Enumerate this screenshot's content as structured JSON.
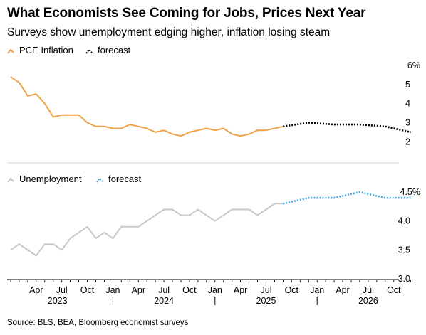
{
  "header": {
    "title": "What Economists See Coming for Jobs, Prices Next Year",
    "subtitle": "Surveys show unemployment edging higher, inflation losing steam"
  },
  "footer": {
    "source": "Source: BLS, BEA, Bloomberg economist surveys"
  },
  "colors": {
    "pce": "#f0a24a",
    "pce_forecast": "#000000",
    "unemployment": "#c8c8c8",
    "unemployment_forecast": "#4aa8e0",
    "axis": "#000000",
    "grid": "#d6d6d6"
  },
  "x_axis": {
    "month_ticks": [
      {
        "label": "Apr",
        "date": "2023-04"
      },
      {
        "label": "Jul",
        "date": "2023-07"
      },
      {
        "label": "Oct",
        "date": "2023-10"
      },
      {
        "label": "Jan",
        "date": "2024-01"
      },
      {
        "label": "Apr",
        "date": "2024-04"
      },
      {
        "label": "Jul",
        "date": "2024-07"
      },
      {
        "label": "Oct",
        "date": "2024-10"
      },
      {
        "label": "Jan",
        "date": "2025-01"
      },
      {
        "label": "Apr",
        "date": "2025-04"
      },
      {
        "label": "Jul",
        "date": "2025-07"
      },
      {
        "label": "Oct",
        "date": "2025-10"
      },
      {
        "label": "Jan",
        "date": "2026-01"
      },
      {
        "label": "Apr",
        "date": "2026-04"
      },
      {
        "label": "Jul",
        "date": "2026-07"
      },
      {
        "label": "Oct",
        "date": "2026-10"
      }
    ],
    "year_labels": [
      "2023",
      "2024",
      "2025",
      "2026"
    ]
  },
  "chart_data": [
    {
      "type": "line",
      "legend": [
        {
          "label": "PCE Inflation",
          "color": "#f0a24a"
        },
        {
          "label": "forecast",
          "color": "#000000"
        }
      ],
      "legend_position": "top-left",
      "yaxis_side": "right",
      "ylim": [
        1.6,
        6.0
      ],
      "yticks": [
        {
          "value": 2,
          "label": "2"
        },
        {
          "value": 3,
          "label": "3"
        },
        {
          "value": 4,
          "label": "4"
        },
        {
          "value": 5,
          "label": "5"
        },
        {
          "value": 6,
          "label": "6%"
        }
      ],
      "grid": false,
      "series": [
        {
          "name": "PCE Inflation",
          "style": "solid",
          "color": "#f0a24a",
          "x": [
            "2023-01",
            "2023-02",
            "2023-03",
            "2023-04",
            "2023-05",
            "2023-06",
            "2023-07",
            "2023-08",
            "2023-09",
            "2023-10",
            "2023-11",
            "2023-12",
            "2024-01",
            "2024-02",
            "2024-03",
            "2024-04",
            "2024-05",
            "2024-06",
            "2024-07",
            "2024-08",
            "2024-09",
            "2024-10",
            "2024-11",
            "2024-12",
            "2025-01",
            "2025-02",
            "2025-03",
            "2025-04",
            "2025-05",
            "2025-06",
            "2025-07",
            "2025-08",
            "2025-09"
          ],
          "y": [
            5.4,
            5.1,
            4.4,
            4.5,
            4.0,
            3.3,
            3.4,
            3.4,
            3.4,
            3.0,
            2.8,
            2.8,
            2.7,
            2.7,
            2.9,
            2.8,
            2.7,
            2.5,
            2.6,
            2.4,
            2.3,
            2.5,
            2.6,
            2.7,
            2.6,
            2.7,
            2.4,
            2.3,
            2.4,
            2.6,
            2.6,
            2.7,
            2.8
          ]
        },
        {
          "name": "forecast",
          "style": "dotted",
          "color": "#000000",
          "x": [
            "2025-09",
            "2025-12",
            "2026-03",
            "2026-06",
            "2026-09",
            "2026-12"
          ],
          "y": [
            2.8,
            3.0,
            2.9,
            2.9,
            2.8,
            2.5
          ]
        }
      ]
    },
    {
      "type": "line",
      "legend": [
        {
          "label": "Unemployment",
          "color": "#c8c8c8"
        },
        {
          "label": "forecast",
          "color": "#4aa8e0"
        }
      ],
      "legend_position": "top-left",
      "yaxis_side": "right",
      "ylim": [
        3.0,
        4.55
      ],
      "yticks": [
        {
          "value": 3.0,
          "label": "3.0"
        },
        {
          "value": 3.5,
          "label": "3.5"
        },
        {
          "value": 4.0,
          "label": "4.0"
        },
        {
          "value": 4.5,
          "label": "4.5%"
        }
      ],
      "grid": false,
      "series": [
        {
          "name": "Unemployment",
          "style": "solid",
          "color": "#c8c8c8",
          "x": [
            "2023-01",
            "2023-02",
            "2023-03",
            "2023-04",
            "2023-05",
            "2023-06",
            "2023-07",
            "2023-08",
            "2023-09",
            "2023-10",
            "2023-11",
            "2023-12",
            "2024-01",
            "2024-02",
            "2024-03",
            "2024-04",
            "2024-05",
            "2024-06",
            "2024-07",
            "2024-08",
            "2024-09",
            "2024-10",
            "2024-11",
            "2024-12",
            "2025-01",
            "2025-02",
            "2025-03",
            "2025-04",
            "2025-05",
            "2025-06",
            "2025-07",
            "2025-08",
            "2025-09"
          ],
          "y": [
            3.5,
            3.6,
            3.5,
            3.4,
            3.6,
            3.6,
            3.5,
            3.7,
            3.8,
            3.9,
            3.7,
            3.8,
            3.7,
            3.9,
            3.9,
            3.9,
            4.0,
            4.1,
            4.2,
            4.2,
            4.1,
            4.1,
            4.2,
            4.1,
            4.0,
            4.1,
            4.2,
            4.2,
            4.2,
            4.1,
            4.2,
            4.3,
            4.3
          ]
        },
        {
          "name": "forecast",
          "style": "dotted",
          "color": "#4aa8e0",
          "x": [
            "2025-09",
            "2025-12",
            "2026-03",
            "2026-06",
            "2026-09",
            "2026-12"
          ],
          "y": [
            4.3,
            4.4,
            4.4,
            4.5,
            4.4,
            4.4
          ]
        }
      ]
    }
  ]
}
